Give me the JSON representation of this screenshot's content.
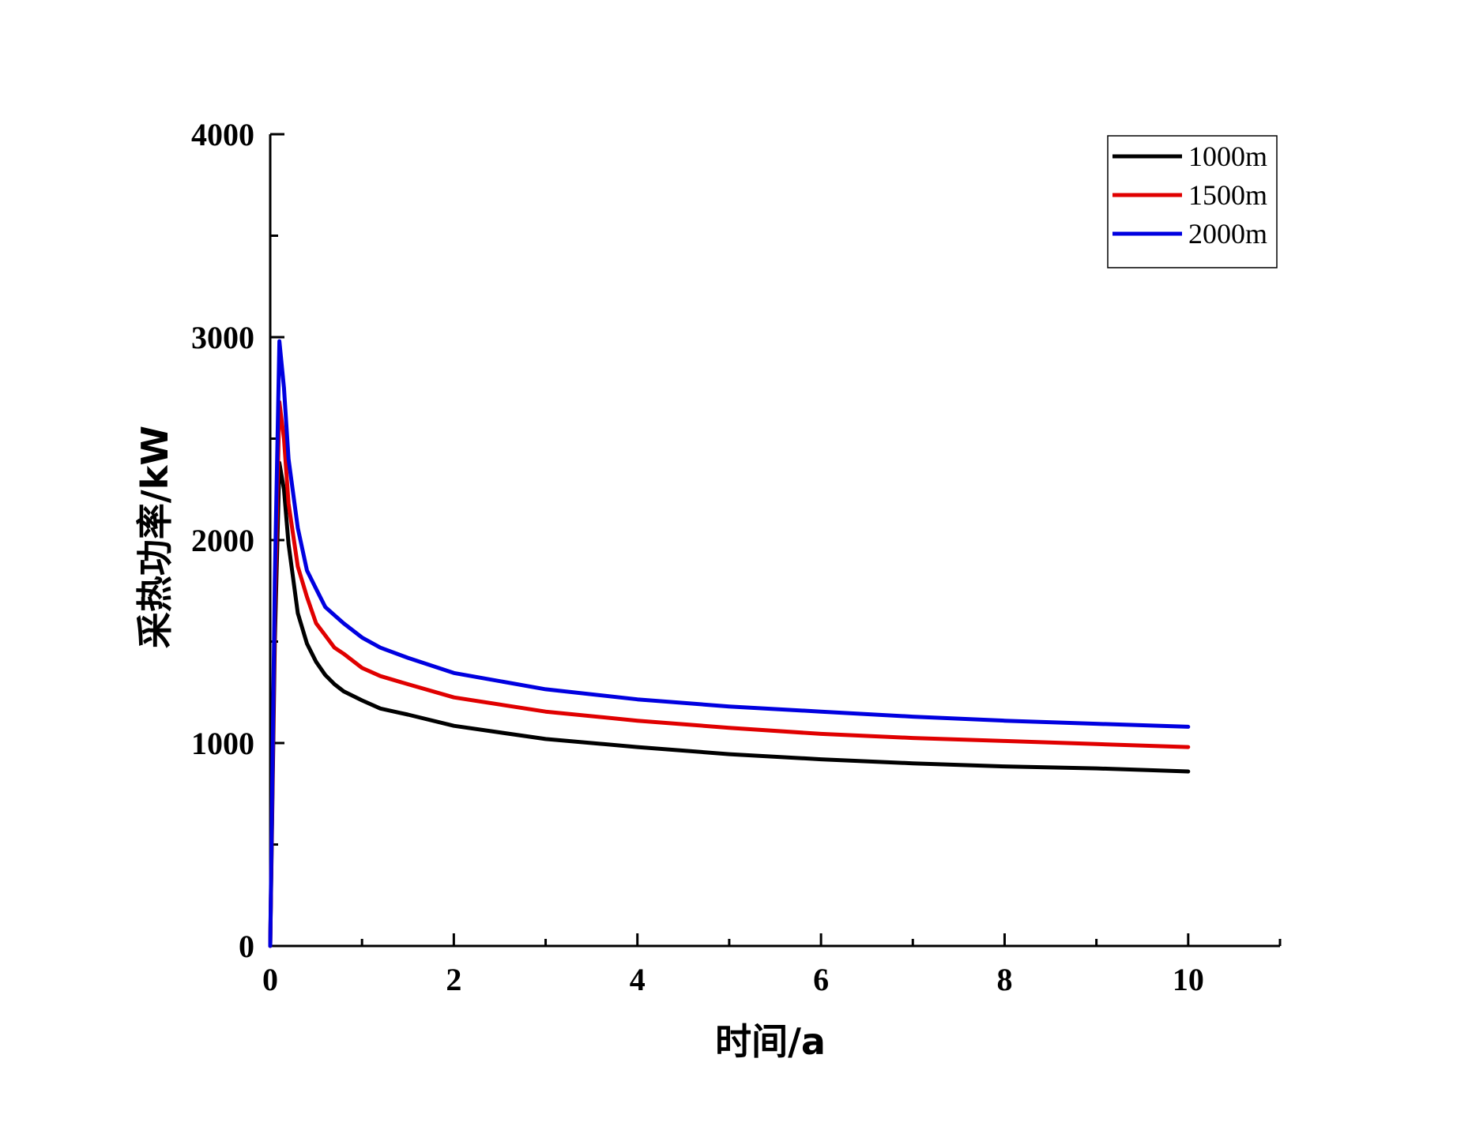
{
  "chart_data": {
    "type": "line",
    "title": "",
    "xlabel": "时间/a",
    "ylabel": "采热功率/kW",
    "xlim": [
      0,
      11
    ],
    "ylim": [
      0,
      4000
    ],
    "grid": false,
    "legend_position": "top-right",
    "x_ticks": [
      0,
      2,
      4,
      6,
      8,
      10
    ],
    "x_tick_labels": [
      "0",
      "2",
      "4",
      "6",
      "8",
      "10"
    ],
    "y_ticks": [
      0,
      1000,
      2000,
      3000,
      4000
    ],
    "y_tick_labels": [
      "0",
      "1000",
      "2000",
      "3000",
      "4000"
    ],
    "series": [
      {
        "name": "1000m",
        "color": "#000000",
        "x": [
          0,
          0.05,
          0.1,
          0.15,
          0.2,
          0.3,
          0.4,
          0.5,
          0.6,
          0.7,
          0.8,
          1.0,
          1.2,
          1.5,
          2.0,
          3.0,
          4.0,
          5.0,
          6.0,
          7.0,
          8.0,
          9.0,
          10.0
        ],
        "y": [
          0,
          1500,
          2380,
          2250,
          1980,
          1640,
          1490,
          1400,
          1335,
          1290,
          1255,
          1210,
          1170,
          1140,
          1085,
          1020,
          980,
          945,
          920,
          900,
          885,
          875,
          860
        ]
      },
      {
        "name": "1500m",
        "color": "#e00000",
        "x": [
          0,
          0.05,
          0.1,
          0.15,
          0.2,
          0.3,
          0.4,
          0.5,
          0.6,
          0.7,
          0.8,
          1.0,
          1.2,
          1.5,
          2.0,
          3.0,
          4.0,
          5.0,
          6.0,
          7.0,
          8.0,
          9.0,
          10.0
        ],
        "y": [
          0,
          1650,
          2680,
          2500,
          2180,
          1870,
          1720,
          1590,
          1530,
          1470,
          1440,
          1370,
          1330,
          1290,
          1225,
          1155,
          1110,
          1075,
          1045,
          1025,
          1010,
          995,
          980
        ]
      },
      {
        "name": "2000m",
        "color": "#0000e0",
        "x": [
          0,
          0.05,
          0.1,
          0.15,
          0.2,
          0.3,
          0.4,
          0.5,
          0.6,
          0.7,
          0.8,
          1.0,
          1.2,
          1.5,
          2.0,
          3.0,
          4.0,
          5.0,
          6.0,
          7.0,
          8.0,
          9.0,
          10.0
        ],
        "y": [
          0,
          1800,
          2980,
          2750,
          2400,
          2060,
          1850,
          1760,
          1670,
          1630,
          1590,
          1520,
          1470,
          1420,
          1345,
          1265,
          1215,
          1180,
          1155,
          1130,
          1110,
          1095,
          1080
        ]
      }
    ]
  }
}
